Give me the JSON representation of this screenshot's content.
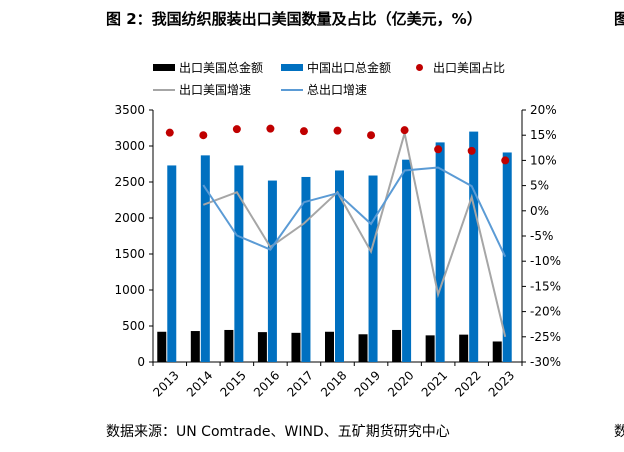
{
  "title": "图 2：我国纺织服装出口美国数量及占比（亿美元，%）",
  "title_edge": "图",
  "source": "数据来源：UN Comtrade、WIND、五矿期货研究中心",
  "source_edge": "数",
  "colors": {
    "export_us_bar": "#000000",
    "export_total_bar": "#0070C0",
    "share_dot": "#C00000",
    "growth_us_line": "#A6A6A6",
    "growth_total_line": "#5B9BD5"
  },
  "chart_data": {
    "type": "bar",
    "categories": [
      "2013",
      "2014",
      "2015",
      "2016",
      "2017",
      "2018",
      "2019",
      "2020",
      "2021",
      "2022",
      "2023"
    ],
    "left_axis": {
      "ylim": [
        0,
        3500
      ],
      "ticks": [
        "0",
        "500",
        "1000",
        "1500",
        "2000",
        "2500",
        "3000",
        "3500"
      ]
    },
    "right_axis": {
      "ylim": [
        -30,
        20
      ],
      "ticks": [
        "-30%",
        "-25%",
        "-20%",
        "-15%",
        "-10%",
        "-5%",
        "0%",
        "5%",
        "10%",
        "15%",
        "20%"
      ]
    },
    "series": [
      {
        "name": "出口美国总金额",
        "type": "bar",
        "axis": "left",
        "values": [
          420,
          430,
          445,
          415,
          405,
          420,
          385,
          445,
          370,
          380,
          285
        ]
      },
      {
        "name": "中国出口总金额",
        "type": "bar",
        "axis": "left",
        "values": [
          2730,
          2870,
          2730,
          2520,
          2570,
          2660,
          2590,
          2810,
          3050,
          3200,
          2910
        ]
      },
      {
        "name": "出口美国占比",
        "type": "scatter",
        "axis": "right",
        "values": [
          15.5,
          15.0,
          16.2,
          16.3,
          15.8,
          15.9,
          15.0,
          16.0,
          12.2,
          11.9,
          10.0
        ]
      },
      {
        "name": "出口美国增速",
        "type": "line",
        "axis": "right",
        "values": [
          null,
          1.2,
          3.7,
          -7.2,
          -2.5,
          3.7,
          -8.1,
          15.4,
          -16.6,
          2.7,
          -25.0
        ]
      },
      {
        "name": "总出口增速",
        "type": "line",
        "axis": "right",
        "values": [
          null,
          5.1,
          -4.9,
          -7.7,
          1.7,
          3.5,
          -2.6,
          8.0,
          8.6,
          4.9,
          -9.1
        ]
      }
    ],
    "legend_placement": "top",
    "grid": false
  }
}
